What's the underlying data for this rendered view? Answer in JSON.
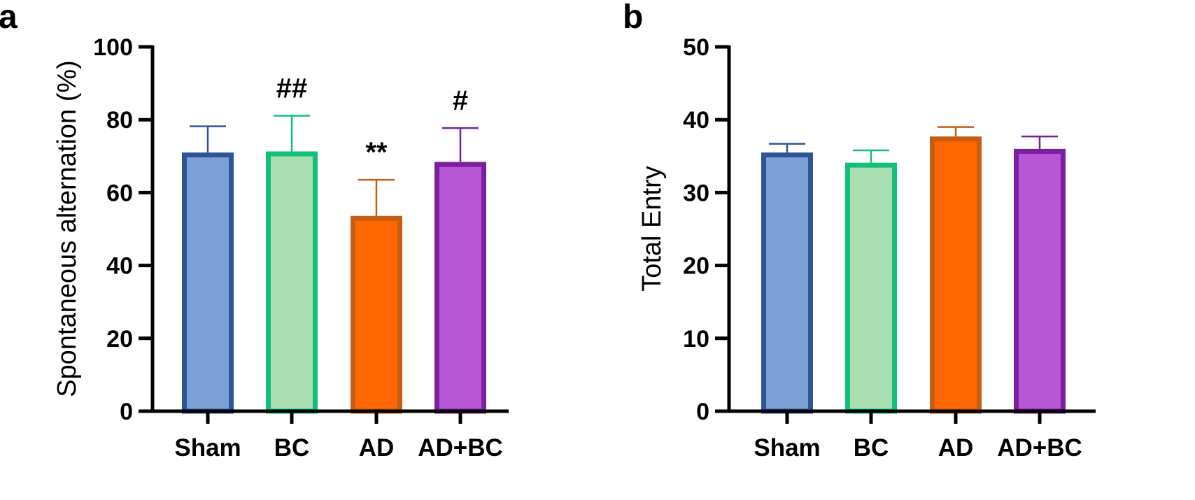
{
  "chart_data": [
    {
      "type": "bar",
      "panel": "a",
      "categories": [
        "Sham",
        "BC",
        "AD",
        "AD+BC"
      ],
      "values": [
        71,
        71.3,
        53.6,
        68.4
      ],
      "errors": [
        7.2,
        9.8,
        9.9,
        9.3
      ],
      "ylabel": "Spontaneous alternation (%)",
      "ylim": [
        0,
        100
      ],
      "yticks": [
        "0",
        "20",
        "40",
        "60",
        "80",
        "100"
      ],
      "annotations": [
        "",
        "##",
        "**",
        "#"
      ],
      "fill_colors": [
        "#7ba1d6",
        "#a9deb0",
        "#ff6600",
        "#b857d6"
      ],
      "edge_colors": [
        "#2f5597",
        "#10c07a",
        "#c65d12",
        "#7a1fa0"
      ],
      "grid": false
    },
    {
      "type": "bar",
      "panel": "b",
      "categories": [
        "Sham",
        "BC",
        "AD",
        "AD+BC"
      ],
      "values": [
        35.5,
        34.1,
        37.7,
        36
      ],
      "errors": [
        1.2,
        1.7,
        1.3,
        1.7
      ],
      "ylabel": "Total Entry",
      "ylim": [
        0,
        50
      ],
      "yticks": [
        "0",
        "10",
        "20",
        "30",
        "40",
        "50"
      ],
      "annotations": [
        "",
        "",
        "",
        ""
      ],
      "fill_colors": [
        "#7ba1d6",
        "#a9deb0",
        "#ff6600",
        "#b857d6"
      ],
      "edge_colors": [
        "#2f5597",
        "#10c07a",
        "#c65d12",
        "#7a1fa0"
      ],
      "grid": false
    }
  ]
}
